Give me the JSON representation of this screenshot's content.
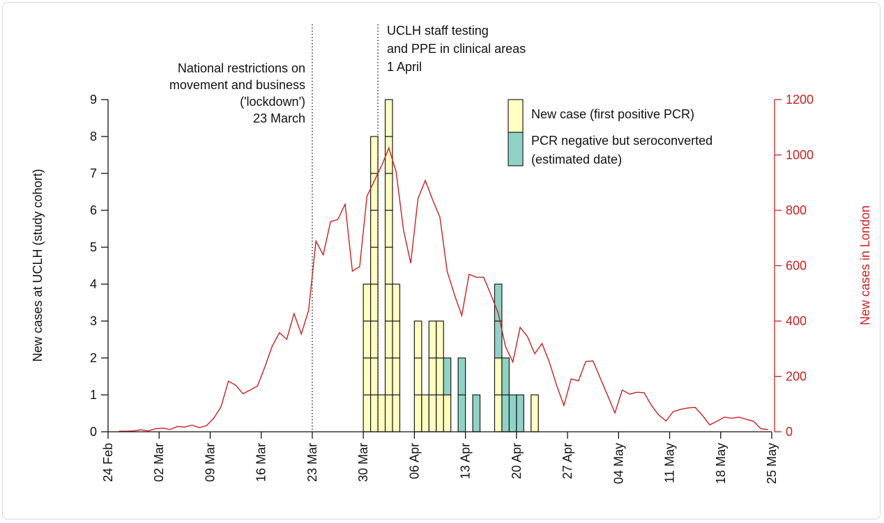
{
  "chart_data": [
    {
      "type": "bar",
      "stacked": true,
      "ylabel": "New cases at UCLH (study cohort)",
      "ylim": [
        0,
        9
      ],
      "yticks": [
        "0",
        "1",
        "2",
        "3",
        "4",
        "5",
        "6",
        "7",
        "8",
        "9"
      ],
      "xticks": [
        "24 Feb",
        "02 Mar",
        "09 Mar",
        "16 Mar",
        "23 Mar",
        "30 Mar",
        "06 Apr",
        "13 Apr",
        "20 Apr",
        "27 Apr",
        "04 May",
        "11 May",
        "18 May",
        "25 May"
      ],
      "categories": [
        "30 Mar",
        "31 Mar",
        "1 Apr",
        "2 Apr",
        "3 Apr",
        "6 Apr",
        "7 Apr",
        "8 Apr",
        "9 Apr",
        "10 Apr",
        "12 Apr",
        "14 Apr",
        "17 Apr",
        "18 Apr",
        "19 Apr",
        "20 Apr",
        "22 Apr"
      ],
      "series": [
        {
          "name": "New case (first positive PCR)",
          "color": "#ffffc0",
          "values": [
            4,
            8,
            1,
            9,
            4,
            3,
            1,
            3,
            3,
            1,
            0,
            0,
            2,
            0,
            0,
            0,
            1
          ]
        },
        {
          "name": "PCR negative but seroconverted (estimated date)",
          "color": "#8fd3c6",
          "values": [
            0,
            0,
            0,
            0,
            0,
            0,
            0,
            0,
            0,
            1,
            2,
            1,
            2,
            2,
            1,
            1,
            0
          ]
        }
      ],
      "legend_position": "top-right"
    },
    {
      "type": "line",
      "ylabel": "New cases in London",
      "axis": "right",
      "color": "#cc1f1f",
      "ylim": [
        0,
        1200
      ],
      "yticks": [
        "0",
        "200",
        "400",
        "600",
        "800",
        "1000",
        "1200"
      ],
      "x": [
        "25 Feb",
        "26 Feb",
        "27 Feb",
        "28 Feb",
        "29 Feb",
        "1 Mar",
        "2 Mar",
        "3 Mar",
        "4 Mar",
        "5 Mar",
        "6 Mar",
        "7 Mar",
        "8 Mar",
        "9 Mar",
        "10 Mar",
        "11 Mar",
        "12 Mar",
        "13 Mar",
        "14 Mar",
        "15 Mar",
        "16 Mar",
        "17 Mar",
        "18 Mar",
        "19 Mar",
        "20 Mar",
        "21 Mar",
        "22 Mar",
        "23 Mar",
        "24 Mar",
        "25 Mar",
        "26 Mar",
        "27 Mar",
        "28 Mar",
        "29 Mar",
        "30 Mar",
        "31 Mar",
        "1 Apr",
        "2 Apr",
        "3 Apr",
        "4 Apr",
        "5 Apr",
        "6 Apr",
        "7 Apr",
        "8 Apr",
        "9 Apr",
        "10 Apr",
        "11 Apr",
        "12 Apr",
        "13 Apr",
        "14 Apr",
        "15 Apr",
        "16 Apr",
        "17 Apr",
        "18 Apr",
        "19 Apr",
        "20 Apr",
        "21 Apr",
        "22 Apr",
        "23 Apr",
        "24 Apr",
        "25 Apr",
        "26 Apr",
        "27 Apr",
        "28 Apr",
        "29 Apr",
        "30 Apr",
        "1 May",
        "2 May",
        "3 May",
        "4 May",
        "5 May",
        "6 May",
        "7 May",
        "8 May",
        "9 May",
        "10 May",
        "11 May",
        "12 May",
        "13 May",
        "14 May",
        "15 May",
        "16 May",
        "17 May",
        "18 May",
        "19 May",
        "20 May",
        "21 May",
        "22 May",
        "23 May",
        "24 May"
      ],
      "values": [
        2,
        2,
        3,
        7,
        3,
        11,
        13,
        8,
        19,
        17,
        24,
        15,
        22,
        49,
        91,
        183,
        168,
        137,
        151,
        166,
        234,
        309,
        358,
        334,
        427,
        353,
        439,
        689,
        639,
        759,
        767,
        822,
        580,
        597,
        851,
        906,
        961,
        1025,
        939,
        730,
        609,
        843,
        908,
        838,
        775,
        579,
        495,
        420,
        569,
        558,
        558,
        495,
        428,
        307,
        252,
        377,
        344,
        282,
        319,
        252,
        168,
        95,
        191,
        184,
        254,
        256,
        193,
        131,
        68,
        151,
        136,
        143,
        141,
        95,
        61,
        39,
        73,
        81,
        86,
        88,
        59,
        25,
        38,
        53,
        49,
        53,
        45,
        38,
        11,
        8
      ]
    }
  ],
  "annotations": [
    {
      "date": "23 Mar",
      "lines": [
        "National restrictions on",
        "movement and business",
        "('lockdown')",
        "23 March"
      ]
    },
    {
      "date": "1 Apr",
      "lines": [
        "UCLH staff testing",
        "and PPE in clinical areas",
        "1 April"
      ]
    }
  ],
  "legend": {
    "new_case": "New case (first positive PCR)",
    "sero_line1": "PCR negative but seroconverted",
    "sero_line2": "(estimated date)"
  }
}
